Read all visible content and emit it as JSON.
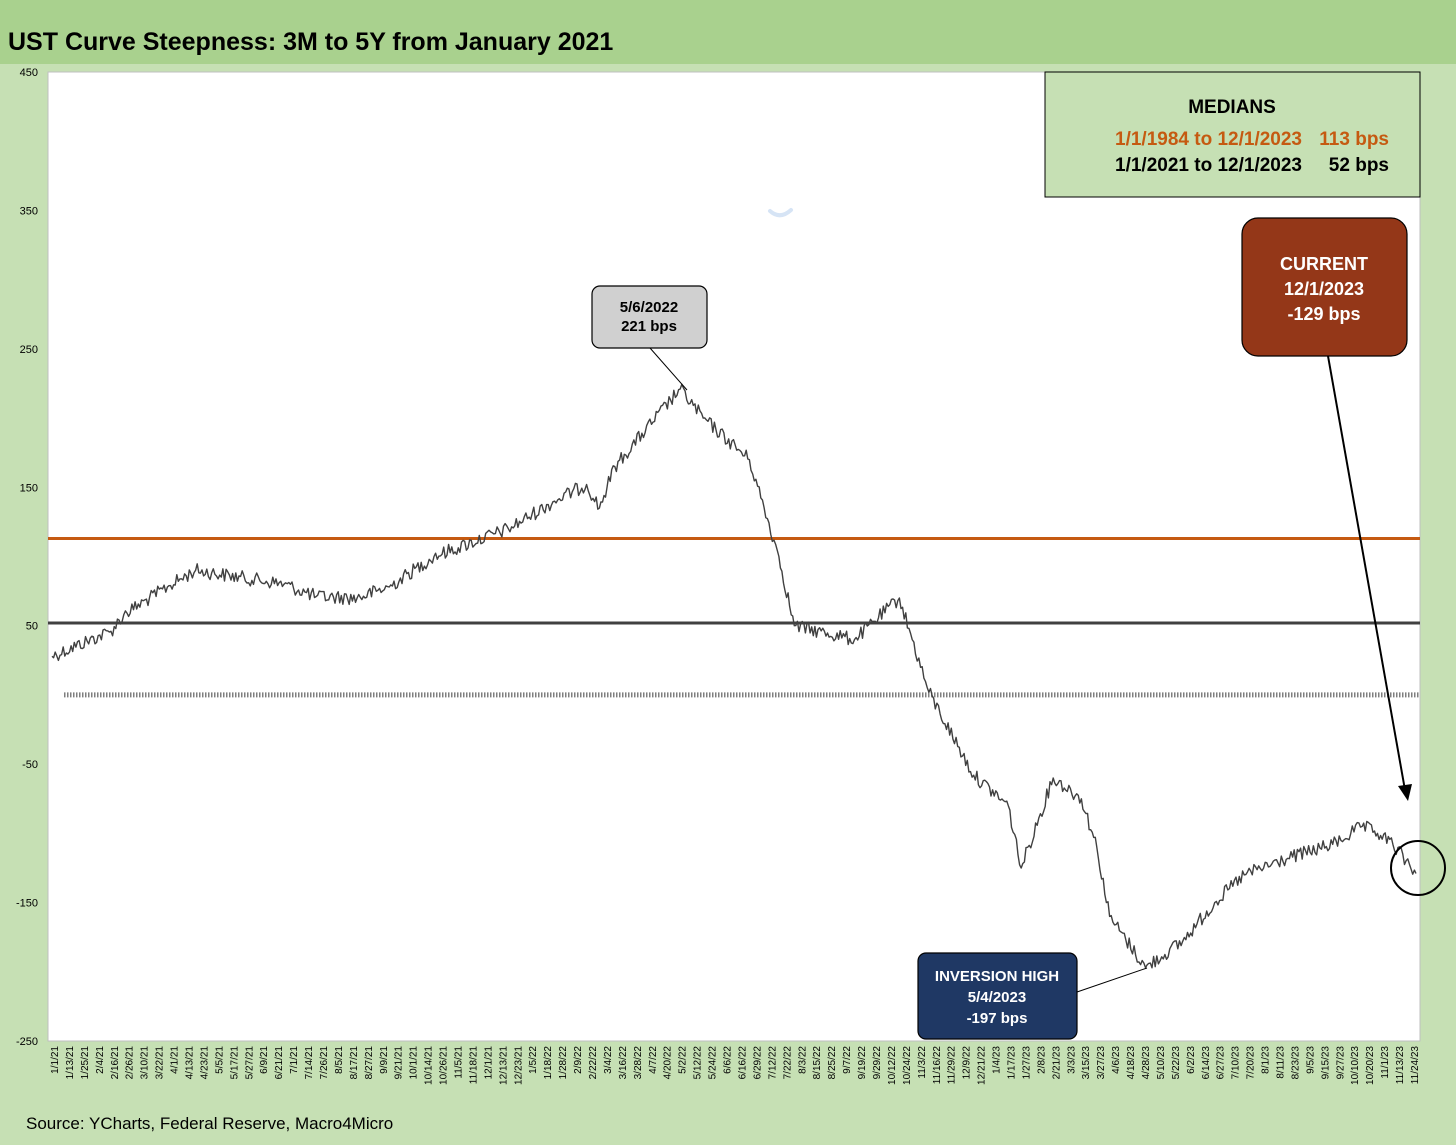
{
  "chart_data": {
    "type": "line",
    "title": "UST Curve Steepness: 3M to 5Y from January 2021",
    "ylim": [
      -250,
      450
    ],
    "yticks": [
      450,
      350,
      250,
      150,
      50,
      -50,
      -150,
      -250
    ],
    "x_tick_labels": [
      "1/1/21",
      "1/13/21",
      "1/25/21",
      "2/4/21",
      "2/16/21",
      "2/26/21",
      "3/10/21",
      "3/22/21",
      "4/1/21",
      "4/13/21",
      "4/23/21",
      "5/5/21",
      "5/17/21",
      "5/27/21",
      "6/9/21",
      "6/21/21",
      "7/1/21",
      "7/14/21",
      "7/26/21",
      "8/5/21",
      "8/17/21",
      "8/27/21",
      "9/9/21",
      "9/21/21",
      "10/1/21",
      "10/14/21",
      "10/26/21",
      "11/5/21",
      "11/18/21",
      "12/1/21",
      "12/13/21",
      "12/23/21",
      "1/5/22",
      "1/18/22",
      "1/28/22",
      "2/9/22",
      "2/22/22",
      "3/4/22",
      "3/16/22",
      "3/28/22",
      "4/7/22",
      "4/20/22",
      "5/2/22",
      "5/12/22",
      "5/24/22",
      "6/6/22",
      "6/16/22",
      "6/29/22",
      "7/12/22",
      "7/22/22",
      "8/3/22",
      "8/15/22",
      "8/25/22",
      "9/7/22",
      "9/19/22",
      "9/29/22",
      "10/12/22",
      "10/24/22",
      "11/3/22",
      "11/16/22",
      "11/29/22",
      "12/9/22",
      "12/21/22",
      "1/4/23",
      "1/17/23",
      "1/27/23",
      "2/8/23",
      "2/21/23",
      "3/3/23",
      "3/15/23",
      "3/27/23",
      "4/6/23",
      "4/18/23",
      "4/28/23",
      "5/10/23",
      "5/22/23",
      "6/2/23",
      "6/14/23",
      "6/27/23",
      "7/10/23",
      "7/20/23",
      "8/1/23",
      "8/11/23",
      "8/23/23",
      "9/5/23",
      "9/15/23",
      "9/27/23",
      "10/10/23",
      "10/20/23",
      "11/1/23",
      "11/13/23",
      "11/24/23"
    ],
    "series": [
      {
        "color": "#404040",
        "x": [
          "1/1/21",
          "2/16/21",
          "2/26/21",
          "4/1/21",
          "4/23/21",
          "7/1/21",
          "7/26/21",
          "8/27/21",
          "9/21/21",
          "10/26/21",
          "12/23/21",
          "1/28/22",
          "2/22/22",
          "3/4/22",
          "3/16/22",
          "5/6/22",
          "5/24/22",
          "6/29/22",
          "7/22/22",
          "8/3/22",
          "9/19/22",
          "10/24/22",
          "11/3/22",
          "11/16/22",
          "12/21/22",
          "1/17/23",
          "1/27/23",
          "2/21/23",
          "3/15/23",
          "3/27/23",
          "4/6/23",
          "5/4/23",
          "6/2/23",
          "6/27/23",
          "7/20/23",
          "8/23/23",
          "9/27/23",
          "10/20/23",
          "11/1/23",
          "11/13/23",
          "12/1/23"
        ],
        "values": [
          28,
          46,
          58,
          78,
          90,
          80,
          71,
          70,
          78,
          100,
          120,
          140,
          152,
          135,
          165,
          221,
          200,
          170,
          100,
          50,
          40,
          70,
          40,
          2,
          -58,
          -80,
          -125,
          -60,
          -75,
          -110,
          -160,
          -197,
          -178,
          -150,
          -130,
          -118,
          -108,
          -95,
          -100,
          -108,
          -129
        ]
      }
    ],
    "reference_lines": [
      {
        "value": 113,
        "color": "#c55a11"
      },
      {
        "value": 52,
        "color": "#404040"
      },
      {
        "value": 0,
        "color": "#7f7f7f"
      }
    ],
    "medians_box": {
      "heading": "MEDIANS",
      "rows": [
        {
          "label": "1/1/1984 to 12/1/2023",
          "value": "113 bps",
          "color": "#c55a11"
        },
        {
          "label": "1/1/2021 to 12/1/2023",
          "value": "52 bps",
          "color": "#000000"
        }
      ]
    },
    "annotations": [
      {
        "lines": [
          "5/6/2022",
          "221 bps"
        ]
      },
      {
        "lines": [
          "CURRENT",
          "12/1/2023",
          "-129 bps"
        ]
      },
      {
        "lines": [
          "INVERSION HIGH",
          "5/4/2023",
          "-197 bps"
        ]
      }
    ],
    "source": "Source: YCharts, Federal Reserve, Macro4Micro"
  }
}
